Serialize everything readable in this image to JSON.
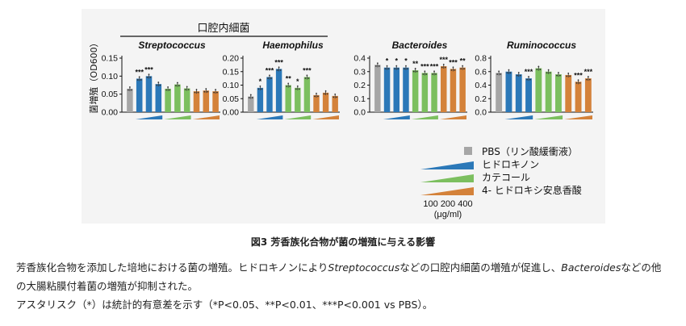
{
  "colors": {
    "pbs": "#a6a6a6",
    "hydroquinone": "#2b78b8",
    "catechol": "#7cbf5f",
    "hydroxybenzoate": "#d4823a",
    "figure_bg": "#f4f4f4"
  },
  "figure": {
    "group_label": "口腔内細菌",
    "y_axis_label": "菌増殖（OD600）",
    "legend": {
      "items": [
        "PBS（リン酸緩衝液）",
        "ヒドロキノン",
        "カテコール",
        "4- ヒドロキシ安息香酸"
      ],
      "concentrations": "100 200 400",
      "unit": "(μg/ml)"
    }
  },
  "chart_data": [
    {
      "type": "bar",
      "title": "Streptococcus",
      "ylabel": "菌増殖（OD600）",
      "ylim": [
        0,
        0.15
      ],
      "yticks": [
        "0.00",
        "0.05",
        "0.10",
        "0.15"
      ],
      "categories": [
        "PBS",
        "HQ 100",
        "HQ 200",
        "HQ 400",
        "CAT 100",
        "CAT 200",
        "CAT 400",
        "HBA 100",
        "HBA 200",
        "HBA 400"
      ],
      "values": [
        0.065,
        0.093,
        0.1,
        0.078,
        0.065,
        0.077,
        0.066,
        0.058,
        0.06,
        0.058
      ],
      "annotations": [
        "",
        "***",
        "***",
        "",
        "",
        "",
        "",
        "",
        "",
        ""
      ]
    },
    {
      "type": "bar",
      "title": "Haemophilus",
      "ylim": [
        0,
        0.2
      ],
      "yticks": [
        "0.00",
        "0.05",
        "0.10",
        "0.15",
        "0.20"
      ],
      "categories": [
        "PBS",
        "HQ 100",
        "HQ 200",
        "HQ 400",
        "CAT 100",
        "CAT 200",
        "CAT 400",
        "HBA 100",
        "HBA 200",
        "HBA 400"
      ],
      "values": [
        0.058,
        0.09,
        0.13,
        0.16,
        0.1,
        0.09,
        0.13,
        0.063,
        0.072,
        0.06
      ],
      "annotations": [
        "",
        "*",
        "***",
        "***",
        "**",
        "*",
        "***",
        "",
        "",
        ""
      ]
    },
    {
      "type": "bar",
      "title": "Bacteroides",
      "ylim": [
        0,
        0.4
      ],
      "yticks": [
        "0.0",
        "0.1",
        "0.2",
        "0.3",
        "0.4"
      ],
      "categories": [
        "PBS",
        "HQ 100",
        "HQ 200",
        "HQ 400",
        "CAT 100",
        "CAT 200",
        "CAT 400",
        "HBA 100",
        "HBA 200",
        "HBA 400"
      ],
      "values": [
        0.35,
        0.33,
        0.33,
        0.33,
        0.31,
        0.29,
        0.29,
        0.34,
        0.32,
        0.33
      ],
      "annotations": [
        "",
        "*",
        "*",
        "*",
        "**",
        "***",
        "***",
        "***",
        "***",
        "**"
      ]
    },
    {
      "type": "bar",
      "title": "Ruminococcus",
      "ylim": [
        0,
        0.8
      ],
      "yticks": [
        "0.0",
        "0.2",
        "0.4",
        "0.6",
        "0.8"
      ],
      "categories": [
        "PBS",
        "HQ 100",
        "HQ 200",
        "HQ 400",
        "CAT 100",
        "CAT 200",
        "CAT 400",
        "HBA 100",
        "HBA 200",
        "HBA 400"
      ],
      "values": [
        0.58,
        0.6,
        0.56,
        0.5,
        0.65,
        0.6,
        0.56,
        0.55,
        0.45,
        0.5
      ],
      "annotations": [
        "",
        "",
        "",
        "***",
        "",
        "",
        "",
        "",
        "***",
        "***"
      ]
    }
  ],
  "caption": {
    "title": "図3 芳香族化合物が菌の増殖に与える影響",
    "line1_a": "芳香族化合物を添加した培地における菌の増殖。ヒドロキノンにより",
    "line1_b": "Streptococcus",
    "line1_c": "などの口腔内細菌の増殖が促進し、",
    "line1_d": "Bacteroides",
    "line1_e": "などの他",
    "line2": "の大腸粘膜付着菌の増殖が抑制された。",
    "line3": "アスタリスク（*）は統計的有意差を示す（*P<0.05、**P<0.01、***P<0.001 vs PBS）。"
  }
}
